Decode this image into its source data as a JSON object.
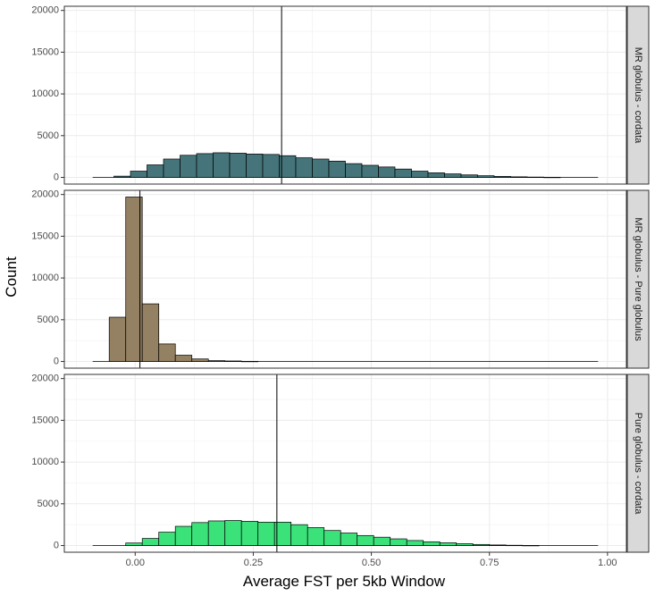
{
  "chart_data": {
    "type": "bar",
    "xlabel": "Average FST per 5kb Window",
    "ylabel": "Count",
    "xlim": [
      -0.15,
      1.04
    ],
    "ylim": [
      -800,
      20500
    ],
    "x_ticks": [
      0.0,
      0.25,
      0.5,
      0.75,
      1.0
    ],
    "x_tick_labels": [
      "0.00",
      "0.25",
      "0.50",
      "0.75",
      "1.00"
    ],
    "y_ticks": [
      0,
      5000,
      10000,
      15000,
      20000
    ],
    "y_tick_labels": [
      "0",
      "5000",
      "10000",
      "15000",
      "20000"
    ],
    "grid": true,
    "facet": "rows",
    "panels": [
      {
        "name": "MR globulus - cordata",
        "color": "#45757A",
        "mean_line": 0.31,
        "x_range": [
          -0.09,
          0.98
        ],
        "bins": [
          {
            "x0": -0.045,
            "x1": -0.01,
            "y": 150
          },
          {
            "x0": -0.01,
            "x1": 0.025,
            "y": 750
          },
          {
            "x0": 0.025,
            "x1": 0.06,
            "y": 1500
          },
          {
            "x0": 0.06,
            "x1": 0.095,
            "y": 2200
          },
          {
            "x0": 0.095,
            "x1": 0.13,
            "y": 2650
          },
          {
            "x0": 0.13,
            "x1": 0.165,
            "y": 2850
          },
          {
            "x0": 0.165,
            "x1": 0.2,
            "y": 2950
          },
          {
            "x0": 0.2,
            "x1": 0.235,
            "y": 2900
          },
          {
            "x0": 0.235,
            "x1": 0.27,
            "y": 2800
          },
          {
            "x0": 0.27,
            "x1": 0.305,
            "y": 2750
          },
          {
            "x0": 0.305,
            "x1": 0.34,
            "y": 2600
          },
          {
            "x0": 0.34,
            "x1": 0.375,
            "y": 2350
          },
          {
            "x0": 0.375,
            "x1": 0.41,
            "y": 2200
          },
          {
            "x0": 0.41,
            "x1": 0.445,
            "y": 1950
          },
          {
            "x0": 0.445,
            "x1": 0.48,
            "y": 1650
          },
          {
            "x0": 0.48,
            "x1": 0.515,
            "y": 1450
          },
          {
            "x0": 0.515,
            "x1": 0.55,
            "y": 1250
          },
          {
            "x0": 0.55,
            "x1": 0.585,
            "y": 1000
          },
          {
            "x0": 0.585,
            "x1": 0.62,
            "y": 750
          },
          {
            "x0": 0.62,
            "x1": 0.655,
            "y": 550
          },
          {
            "x0": 0.655,
            "x1": 0.69,
            "y": 420
          },
          {
            "x0": 0.69,
            "x1": 0.725,
            "y": 300
          },
          {
            "x0": 0.725,
            "x1": 0.76,
            "y": 200
          },
          {
            "x0": 0.76,
            "x1": 0.795,
            "y": 120
          },
          {
            "x0": 0.795,
            "x1": 0.83,
            "y": 70
          },
          {
            "x0": 0.83,
            "x1": 0.865,
            "y": 40
          },
          {
            "x0": 0.865,
            "x1": 0.9,
            "y": 20
          }
        ]
      },
      {
        "name": "MR globulus - Pure globulus",
        "color": "#948163",
        "mean_line": 0.01,
        "x_range": [
          -0.09,
          0.98
        ],
        "bins": [
          {
            "x0": -0.055,
            "x1": -0.02,
            "y": 5300
          },
          {
            "x0": -0.02,
            "x1": 0.015,
            "y": 19700
          },
          {
            "x0": 0.015,
            "x1": 0.05,
            "y": 6900
          },
          {
            "x0": 0.05,
            "x1": 0.085,
            "y": 2100
          },
          {
            "x0": 0.085,
            "x1": 0.12,
            "y": 750
          },
          {
            "x0": 0.12,
            "x1": 0.155,
            "y": 300
          },
          {
            "x0": 0.155,
            "x1": 0.19,
            "y": 100
          },
          {
            "x0": 0.19,
            "x1": 0.225,
            "y": 60
          },
          {
            "x0": 0.225,
            "x1": 0.26,
            "y": 20
          }
        ]
      },
      {
        "name": "Pure globulus - cordata",
        "color": "#3BE27A",
        "mean_line": 0.3,
        "x_range": [
          -0.09,
          0.98
        ],
        "bins": [
          {
            "x0": -0.02,
            "x1": 0.015,
            "y": 300
          },
          {
            "x0": 0.015,
            "x1": 0.05,
            "y": 850
          },
          {
            "x0": 0.05,
            "x1": 0.085,
            "y": 1600
          },
          {
            "x0": 0.085,
            "x1": 0.12,
            "y": 2300
          },
          {
            "x0": 0.12,
            "x1": 0.155,
            "y": 2750
          },
          {
            "x0": 0.155,
            "x1": 0.19,
            "y": 2950
          },
          {
            "x0": 0.19,
            "x1": 0.225,
            "y": 3000
          },
          {
            "x0": 0.225,
            "x1": 0.26,
            "y": 2900
          },
          {
            "x0": 0.26,
            "x1": 0.295,
            "y": 2800
          },
          {
            "x0": 0.295,
            "x1": 0.33,
            "y": 2800
          },
          {
            "x0": 0.33,
            "x1": 0.365,
            "y": 2500
          },
          {
            "x0": 0.365,
            "x1": 0.4,
            "y": 2150
          },
          {
            "x0": 0.4,
            "x1": 0.435,
            "y": 1800
          },
          {
            "x0": 0.435,
            "x1": 0.47,
            "y": 1500
          },
          {
            "x0": 0.47,
            "x1": 0.505,
            "y": 1200
          },
          {
            "x0": 0.505,
            "x1": 0.54,
            "y": 1000
          },
          {
            "x0": 0.54,
            "x1": 0.575,
            "y": 800
          },
          {
            "x0": 0.575,
            "x1": 0.61,
            "y": 600
          },
          {
            "x0": 0.61,
            "x1": 0.645,
            "y": 450
          },
          {
            "x0": 0.645,
            "x1": 0.68,
            "y": 330
          },
          {
            "x0": 0.68,
            "x1": 0.715,
            "y": 220
          },
          {
            "x0": 0.715,
            "x1": 0.75,
            "y": 130
          },
          {
            "x0": 0.75,
            "x1": 0.785,
            "y": 70
          },
          {
            "x0": 0.785,
            "x1": 0.82,
            "y": 35
          },
          {
            "x0": 0.82,
            "x1": 0.855,
            "y": 15
          }
        ]
      }
    ]
  }
}
